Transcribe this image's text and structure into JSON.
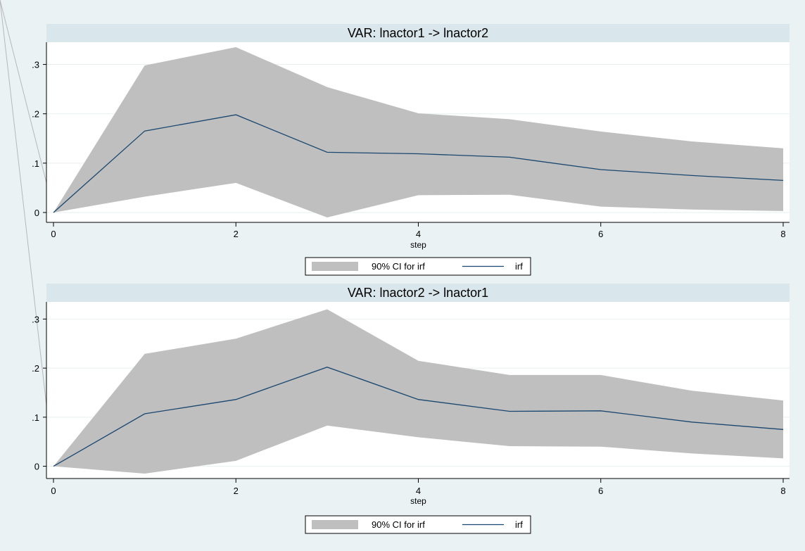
{
  "colors": {
    "outer_bg": "#eaf2f3",
    "panel_bg": "#ffffff",
    "title_bg": "#d9e6eb",
    "band_fill": "#bfbfbf",
    "line": "#1a476f",
    "grid": "#e9eff1",
    "axis": "#000000",
    "diag": "#b8b8b8"
  },
  "chart_data": [
    {
      "type": "area",
      "title": "VAR: lnactor1 -> lnactor2",
      "xlabel": "step",
      "ylabel": "",
      "x": [
        0,
        1,
        2,
        3,
        4,
        5,
        6,
        7,
        8
      ],
      "xlim": [
        0,
        8
      ],
      "ylim": [
        -0.02,
        0.345
      ],
      "x_ticks": [
        0,
        2,
        4,
        6,
        8
      ],
      "x_tick_labels": [
        "0",
        "2",
        "4",
        "6",
        "8"
      ],
      "y_ticks": [
        0,
        0.1,
        0.2,
        0.3
      ],
      "y_tick_labels": [
        "0",
        ".1",
        ".2",
        ".3"
      ],
      "grid": true,
      "legend_position": "bottom-center",
      "series": [
        {
          "name": "90% CI for irf",
          "kind": "band",
          "lower": [
            0,
            0.032,
            0.06,
            -0.01,
            0.035,
            0.036,
            0.012,
            0.006,
            0.003
          ],
          "upper": [
            0,
            0.298,
            0.335,
            0.254,
            0.201,
            0.189,
            0.164,
            0.144,
            0.13
          ]
        },
        {
          "name": "irf",
          "kind": "line",
          "values": [
            0,
            0.165,
            0.198,
            0.122,
            0.119,
            0.112,
            0.087,
            0.075,
            0.065
          ]
        }
      ]
    },
    {
      "type": "area",
      "title": "VAR: lnactor2 -> lnactor1",
      "xlabel": "step",
      "ylabel": "",
      "x": [
        0,
        1,
        2,
        3,
        4,
        5,
        6,
        7,
        8
      ],
      "xlim": [
        0,
        8
      ],
      "ylim": [
        -0.025,
        0.335
      ],
      "x_ticks": [
        0,
        2,
        4,
        6,
        8
      ],
      "x_tick_labels": [
        "0",
        "2",
        "4",
        "6",
        "8"
      ],
      "y_ticks": [
        0,
        0.1,
        0.2,
        0.3
      ],
      "y_tick_labels": [
        "0",
        ".1",
        ".2",
        ".3"
      ],
      "grid": true,
      "legend_position": "bottom-center",
      "series": [
        {
          "name": "90% CI for irf",
          "kind": "band",
          "lower": [
            0,
            -0.015,
            0.011,
            0.083,
            0.059,
            0.041,
            0.04,
            0.026,
            0.016
          ],
          "upper": [
            0,
            0.229,
            0.26,
            0.32,
            0.215,
            0.186,
            0.186,
            0.154,
            0.134
          ]
        },
        {
          "name": "irf",
          "kind": "line",
          "values": [
            0,
            0.107,
            0.136,
            0.202,
            0.136,
            0.112,
            0.113,
            0.09,
            0.075
          ]
        }
      ]
    }
  ]
}
